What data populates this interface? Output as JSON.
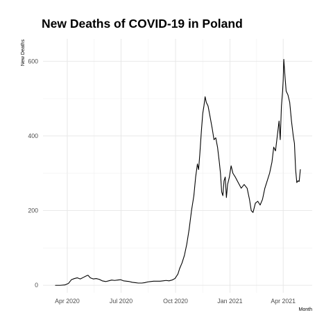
{
  "chart_data": {
    "type": "line",
    "title": "New Deaths of COVID-19 in Poland",
    "xlabel": "Month",
    "ylabel": "New Deaths",
    "x_type": "date",
    "xlim": [
      "2020-02-20",
      "2021-05-20"
    ],
    "ylim": [
      -20,
      660
    ],
    "x_ticks": [
      {
        "date": "2020-04-01",
        "label": "Apr 2020"
      },
      {
        "date": "2020-07-01",
        "label": "Jul 2020"
      },
      {
        "date": "2020-10-01",
        "label": "Oct 2020"
      },
      {
        "date": "2021-01-01",
        "label": "Jan 2021"
      },
      {
        "date": "2021-04-01",
        "label": "Apr 2021"
      }
    ],
    "y_ticks": [
      0,
      200,
      400,
      600
    ],
    "grid": true,
    "legend": "none",
    "line_color": "#000000",
    "series": [
      {
        "points": [
          [
            "2020-03-12",
            0
          ],
          [
            "2020-03-20",
            0
          ],
          [
            "2020-03-28",
            1
          ],
          [
            "2020-04-03",
            5
          ],
          [
            "2020-04-08",
            15
          ],
          [
            "2020-04-13",
            18
          ],
          [
            "2020-04-18",
            20
          ],
          [
            "2020-04-23",
            17
          ],
          [
            "2020-04-28",
            21
          ],
          [
            "2020-05-03",
            25
          ],
          [
            "2020-05-06",
            27
          ],
          [
            "2020-05-10",
            20
          ],
          [
            "2020-05-15",
            17
          ],
          [
            "2020-05-20",
            18
          ],
          [
            "2020-05-25",
            16
          ],
          [
            "2020-05-30",
            12
          ],
          [
            "2020-06-05",
            10
          ],
          [
            "2020-06-10",
            12
          ],
          [
            "2020-06-15",
            14
          ],
          [
            "2020-06-20",
            13
          ],
          [
            "2020-06-25",
            14
          ],
          [
            "2020-06-30",
            15
          ],
          [
            "2020-07-05",
            12
          ],
          [
            "2020-07-10",
            11
          ],
          [
            "2020-07-15",
            10
          ],
          [
            "2020-07-20",
            8
          ],
          [
            "2020-07-25",
            7
          ],
          [
            "2020-07-30",
            6
          ],
          [
            "2020-08-05",
            6
          ],
          [
            "2020-08-10",
            7
          ],
          [
            "2020-08-15",
            9
          ],
          [
            "2020-08-20",
            10
          ],
          [
            "2020-08-25",
            11
          ],
          [
            "2020-08-30",
            11
          ],
          [
            "2020-09-05",
            11
          ],
          [
            "2020-09-10",
            12
          ],
          [
            "2020-09-15",
            13
          ],
          [
            "2020-09-20",
            12
          ],
          [
            "2020-09-25",
            14
          ],
          [
            "2020-09-30",
            18
          ],
          [
            "2020-10-05",
            30
          ],
          [
            "2020-10-08",
            45
          ],
          [
            "2020-10-12",
            60
          ],
          [
            "2020-10-16",
            80
          ],
          [
            "2020-10-20",
            110
          ],
          [
            "2020-10-24",
            150
          ],
          [
            "2020-10-28",
            200
          ],
          [
            "2020-11-01",
            240
          ],
          [
            "2020-11-04",
            290
          ],
          [
            "2020-11-07",
            325
          ],
          [
            "2020-11-09",
            310
          ],
          [
            "2020-11-11",
            350
          ],
          [
            "2020-11-14",
            420
          ],
          [
            "2020-11-16",
            460
          ],
          [
            "2020-11-18",
            480
          ],
          [
            "2020-11-20",
            505
          ],
          [
            "2020-11-22",
            490
          ],
          [
            "2020-11-25",
            480
          ],
          [
            "2020-11-28",
            455
          ],
          [
            "2020-12-02",
            420
          ],
          [
            "2020-12-05",
            390
          ],
          [
            "2020-12-08",
            395
          ],
          [
            "2020-12-11",
            370
          ],
          [
            "2020-12-14",
            330
          ],
          [
            "2020-12-16",
            300
          ],
          [
            "2020-12-18",
            250
          ],
          [
            "2020-12-20",
            240
          ],
          [
            "2020-12-22",
            280
          ],
          [
            "2020-12-24",
            290
          ],
          [
            "2020-12-26",
            235
          ],
          [
            "2020-12-28",
            270
          ],
          [
            "2020-12-31",
            290
          ],
          [
            "2021-01-03",
            320
          ],
          [
            "2021-01-06",
            300
          ],
          [
            "2021-01-10",
            290
          ],
          [
            "2021-01-15",
            275
          ],
          [
            "2021-01-20",
            260
          ],
          [
            "2021-01-25",
            270
          ],
          [
            "2021-01-30",
            260
          ],
          [
            "2021-02-03",
            230
          ],
          [
            "2021-02-06",
            200
          ],
          [
            "2021-02-09",
            195
          ],
          [
            "2021-02-13",
            220
          ],
          [
            "2021-02-17",
            225
          ],
          [
            "2021-02-21",
            215
          ],
          [
            "2021-02-25",
            230
          ],
          [
            "2021-03-01",
            260
          ],
          [
            "2021-03-05",
            280
          ],
          [
            "2021-03-09",
            300
          ],
          [
            "2021-03-13",
            330
          ],
          [
            "2021-03-16",
            370
          ],
          [
            "2021-03-19",
            360
          ],
          [
            "2021-03-22",
            400
          ],
          [
            "2021-03-25",
            440
          ],
          [
            "2021-03-27",
            390
          ],
          [
            "2021-03-29",
            480
          ],
          [
            "2021-03-31",
            520
          ],
          [
            "2021-04-01",
            550
          ],
          [
            "2021-04-02",
            605
          ],
          [
            "2021-04-04",
            560
          ],
          [
            "2021-04-06",
            520
          ],
          [
            "2021-04-09",
            510
          ],
          [
            "2021-04-12",
            490
          ],
          [
            "2021-04-15",
            440
          ],
          [
            "2021-04-18",
            400
          ],
          [
            "2021-04-20",
            380
          ],
          [
            "2021-04-22",
            310
          ],
          [
            "2021-04-24",
            275
          ],
          [
            "2021-04-26",
            280
          ],
          [
            "2021-04-28",
            278
          ],
          [
            "2021-04-30",
            310
          ]
        ]
      }
    ]
  }
}
